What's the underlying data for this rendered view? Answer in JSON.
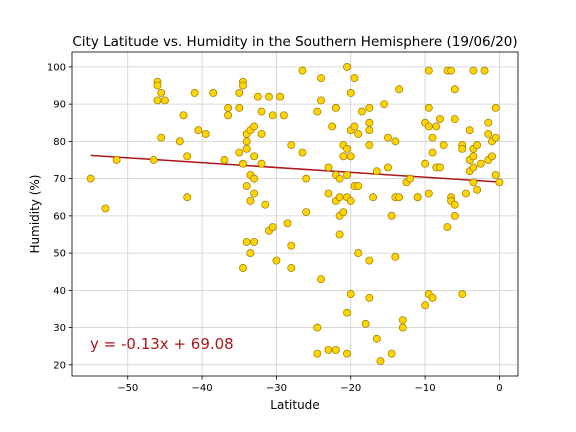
{
  "chart_data": {
    "type": "scatter",
    "title": "City Latitude vs. Humidity in the Southern Hemisphere (19/06/20)",
    "xlabel": "Latitude",
    "ylabel": "Humidity (%)",
    "xlim": [
      -57.5,
      2.5
    ],
    "ylim": [
      17,
      104
    ],
    "xticks": [
      -50,
      -40,
      -30,
      -20,
      -10,
      0
    ],
    "yticks": [
      20,
      30,
      40,
      50,
      60,
      70,
      80,
      90,
      100
    ],
    "grid": true,
    "annotation": "y = -0.13x + 69.08",
    "regression": {
      "slope": -0.13,
      "intercept": 69.08,
      "x_range": [
        -55,
        0
      ]
    },
    "colors": {
      "marker_fill": "#ffd400",
      "marker_edge": "#9a7a00",
      "line": "#b0141c",
      "annotation": "#b0141c"
    },
    "points": [
      [
        -55,
        70
      ],
      [
        -53,
        62
      ],
      [
        -51.5,
        75
      ],
      [
        -46.5,
        75
      ],
      [
        -46,
        96
      ],
      [
        -46,
        95
      ],
      [
        -46,
        91
      ],
      [
        -45.5,
        93
      ],
      [
        -45.5,
        81
      ],
      [
        -45,
        91
      ],
      [
        -43,
        80
      ],
      [
        -42.5,
        87
      ],
      [
        -42,
        76
      ],
      [
        -42,
        65
      ],
      [
        -41,
        93
      ],
      [
        -40.5,
        83
      ],
      [
        -39.5,
        82
      ],
      [
        -38.5,
        93
      ],
      [
        -37,
        75
      ],
      [
        -36.5,
        89
      ],
      [
        -36.5,
        87
      ],
      [
        -35,
        93
      ],
      [
        -35,
        89
      ],
      [
        -35,
        77
      ],
      [
        -34.5,
        96
      ],
      [
        -34.5,
        95
      ],
      [
        -34.5,
        74
      ],
      [
        -34.5,
        46
      ],
      [
        -34,
        80
      ],
      [
        -34,
        78
      ],
      [
        -34,
        82
      ],
      [
        -34,
        68
      ],
      [
        -34,
        53
      ],
      [
        -33.5,
        83
      ],
      [
        -33.5,
        71
      ],
      [
        -33.5,
        64
      ],
      [
        -33.5,
        50
      ],
      [
        -33,
        84
      ],
      [
        -33,
        76
      ],
      [
        -33,
        70
      ],
      [
        -33,
        66
      ],
      [
        -33,
        53
      ],
      [
        -32.5,
        92
      ],
      [
        -32,
        88
      ],
      [
        -32,
        82
      ],
      [
        -32,
        74
      ],
      [
        -31.5,
        63
      ],
      [
        -31,
        92
      ],
      [
        -31,
        56
      ],
      [
        -30.5,
        87
      ],
      [
        -30.5,
        57
      ],
      [
        -30,
        48
      ],
      [
        -29.5,
        92
      ],
      [
        -29,
        87
      ],
      [
        -28.5,
        58
      ],
      [
        -28,
        79
      ],
      [
        -28,
        52
      ],
      [
        -28,
        46
      ],
      [
        -26.5,
        99
      ],
      [
        -26.5,
        77
      ],
      [
        -26,
        70
      ],
      [
        -26,
        61
      ],
      [
        -24.5,
        88
      ],
      [
        -24,
        97
      ],
      [
        -24,
        91
      ],
      [
        -24,
        43
      ],
      [
        -24.5,
        30
      ],
      [
        -24.5,
        23
      ],
      [
        -23,
        73
      ],
      [
        -23,
        66
      ],
      [
        -23,
        24
      ],
      [
        -22.5,
        84
      ],
      [
        -22,
        89
      ],
      [
        -22,
        71
      ],
      [
        -22,
        64
      ],
      [
        -22,
        24
      ],
      [
        -21.5,
        70
      ],
      [
        -21.5,
        65
      ],
      [
        -21.5,
        60
      ],
      [
        -21.5,
        55
      ],
      [
        -21,
        79
      ],
      [
        -21,
        76
      ],
      [
        -21,
        61
      ],
      [
        -20.5,
        100
      ],
      [
        -20.5,
        78
      ],
      [
        -20.5,
        71
      ],
      [
        -20.5,
        65
      ],
      [
        -20,
        93
      ],
      [
        -20,
        83
      ],
      [
        -20,
        76
      ],
      [
        -20,
        64
      ],
      [
        -20,
        39
      ],
      [
        -20.5,
        34
      ],
      [
        -20.5,
        23
      ],
      [
        -19.5,
        97
      ],
      [
        -19.5,
        84
      ],
      [
        -19.5,
        68
      ],
      [
        -19,
        82
      ],
      [
        -19,
        68
      ],
      [
        -19,
        50
      ],
      [
        -18.5,
        88
      ],
      [
        -18,
        31
      ],
      [
        -17.5,
        89
      ],
      [
        -17.5,
        85
      ],
      [
        -17.5,
        83
      ],
      [
        -17.5,
        79
      ],
      [
        -17.5,
        48
      ],
      [
        -17.5,
        38
      ],
      [
        -17,
        65
      ],
      [
        -16.5,
        72
      ],
      [
        -16.5,
        27
      ],
      [
        -16,
        21
      ],
      [
        -15.5,
        90
      ],
      [
        -15,
        81
      ],
      [
        -15,
        73
      ],
      [
        -14.5,
        60
      ],
      [
        -14.5,
        23
      ],
      [
        -14,
        80
      ],
      [
        -14,
        65
      ],
      [
        -14,
        49
      ],
      [
        -13.5,
        94
      ],
      [
        -13.5,
        65
      ],
      [
        -13,
        32
      ],
      [
        -13,
        30
      ],
      [
        -12.5,
        69
      ],
      [
        -12,
        70
      ],
      [
        -11,
        65
      ],
      [
        -11,
        65
      ],
      [
        -10,
        85
      ],
      [
        -10,
        74
      ],
      [
        -10,
        36
      ],
      [
        -9.5,
        99
      ],
      [
        -9.5,
        89
      ],
      [
        -9.5,
        84
      ],
      [
        -9.5,
        66
      ],
      [
        -9.5,
        39
      ],
      [
        -9,
        81
      ],
      [
        -9,
        77
      ],
      [
        -9,
        38
      ],
      [
        -8.5,
        84
      ],
      [
        -8.5,
        73
      ],
      [
        -8,
        86
      ],
      [
        -8,
        73
      ],
      [
        -7.5,
        79
      ],
      [
        -7,
        99
      ],
      [
        -7,
        57
      ],
      [
        -6.5,
        99
      ],
      [
        -6.5,
        65
      ],
      [
        -6.5,
        64
      ],
      [
        -6,
        94
      ],
      [
        -6,
        86
      ],
      [
        -6,
        63
      ],
      [
        -6,
        60
      ],
      [
        -5,
        79
      ],
      [
        -5,
        78
      ],
      [
        -5,
        39
      ],
      [
        -4.5,
        66
      ],
      [
        -4,
        83
      ],
      [
        -4,
        75
      ],
      [
        -4,
        72
      ],
      [
        -3.5,
        99
      ],
      [
        -3.5,
        78
      ],
      [
        -3.5,
        76
      ],
      [
        -3.5,
        73
      ],
      [
        -3.5,
        69
      ],
      [
        -3,
        79
      ],
      [
        -3,
        67
      ],
      [
        -2.5,
        74
      ],
      [
        -2,
        99
      ],
      [
        -1.5,
        82
      ],
      [
        -1.5,
        85
      ],
      [
        -1.5,
        75
      ],
      [
        -1,
        76
      ],
      [
        -1,
        80
      ],
      [
        -0.5,
        89
      ],
      [
        -0.5,
        81
      ],
      [
        -0.5,
        71
      ],
      [
        0,
        69
      ]
    ]
  }
}
